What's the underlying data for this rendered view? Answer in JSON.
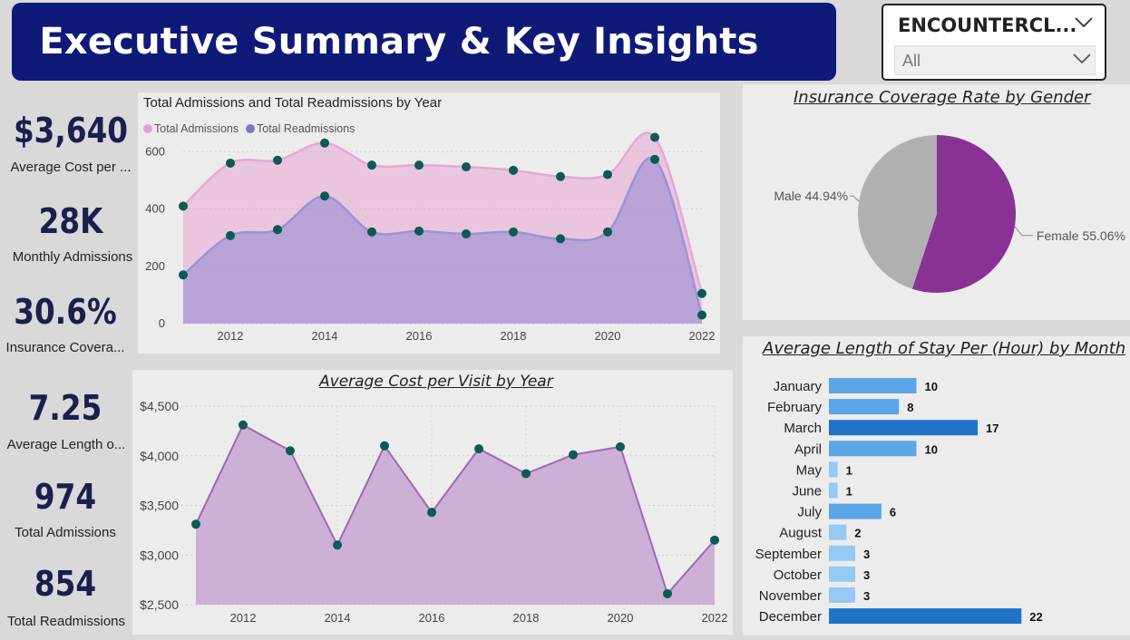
{
  "header": {
    "title": "Executive Summary & Key Insights"
  },
  "slicer": {
    "title": "ENCOUNTERCL...",
    "value": "All"
  },
  "kpis": [
    {
      "value": "$3,640",
      "label": "Average Cost per ..."
    },
    {
      "value": "28K",
      "label": "Monthly Admissions"
    },
    {
      "value": "30.6%",
      "label": "Insurance Covera..."
    },
    {
      "value": "7.25",
      "label": "Average Length o..."
    },
    {
      "value": "974",
      "label": "Total Admissions"
    },
    {
      "value": "854",
      "label": "Total Readmissions"
    }
  ],
  "colors": {
    "banner": "#0f1a78",
    "admissions": "#e8a0d0",
    "readmissions": "#8f86cf",
    "markers": "#0d5a55",
    "cost_area": "#cdb0d5",
    "cost_line": "#a066b8",
    "female": "#8a3195",
    "male": "#b0b0b0",
    "bar_dark": "#1f74c7",
    "bar_mid": "#5aa6e6",
    "bar_light": "#94c9f5"
  },
  "chart_data": [
    {
      "type": "area",
      "title": "Total Admissions and Total Readmissions by Year",
      "x": [
        2011,
        2012,
        2013,
        2014,
        2015,
        2016,
        2017,
        2018,
        2019,
        2020,
        2021,
        2022
      ],
      "x_ticks": [
        "2012",
        "2014",
        "2016",
        "2018",
        "2020",
        "2022"
      ],
      "y_ticks": [
        "0",
        "200",
        "400",
        "600"
      ],
      "ylim": [
        0,
        680
      ],
      "legend_position": "top-left",
      "series": [
        {
          "name": "Total Admissions",
          "values": [
            410,
            560,
            570,
            630,
            553,
            553,
            547,
            535,
            513,
            520,
            650,
            105
          ]
        },
        {
          "name": "Total Readmissions",
          "values": [
            170,
            307,
            328,
            445,
            320,
            323,
            313,
            320,
            296,
            320,
            573,
            30
          ]
        }
      ]
    },
    {
      "type": "area",
      "title": "Average Cost per Visit by Year",
      "x": [
        2011,
        2012,
        2013,
        2014,
        2015,
        2016,
        2017,
        2018,
        2019,
        2020,
        2021,
        2022
      ],
      "x_ticks": [
        "2012",
        "2014",
        "2016",
        "2018",
        "2020",
        "2022"
      ],
      "y_ticks": [
        "$2,500",
        "$3,000",
        "$3,500",
        "$4,000",
        "$4,500"
      ],
      "ylim": [
        2500,
        4500
      ],
      "series": [
        {
          "values": [
            3310,
            4310,
            4050,
            3100,
            4100,
            3430,
            4070,
            3820,
            4010,
            4090,
            2610,
            3150
          ]
        }
      ]
    },
    {
      "type": "pie",
      "title": "Insurance Coverage Rate by Gender",
      "categories": [
        "Female",
        "Male"
      ],
      "values": [
        55.06,
        44.94
      ],
      "labels": [
        "Female 55.06%",
        "Male 44.94%"
      ]
    },
    {
      "type": "bar",
      "orientation": "horizontal",
      "title": "Average Length of Stay Per (Hour) by Month",
      "categories": [
        "January",
        "February",
        "March",
        "April",
        "May",
        "June",
        "July",
        "August",
        "September",
        "October",
        "November",
        "December"
      ],
      "values": [
        10,
        8,
        17,
        10,
        1,
        1,
        6,
        2,
        3,
        3,
        3,
        22
      ],
      "value_labels": [
        "10",
        "8",
        "17",
        "10",
        "1",
        "1",
        "6",
        "2",
        "3",
        "3",
        "3",
        "22"
      ]
    }
  ]
}
